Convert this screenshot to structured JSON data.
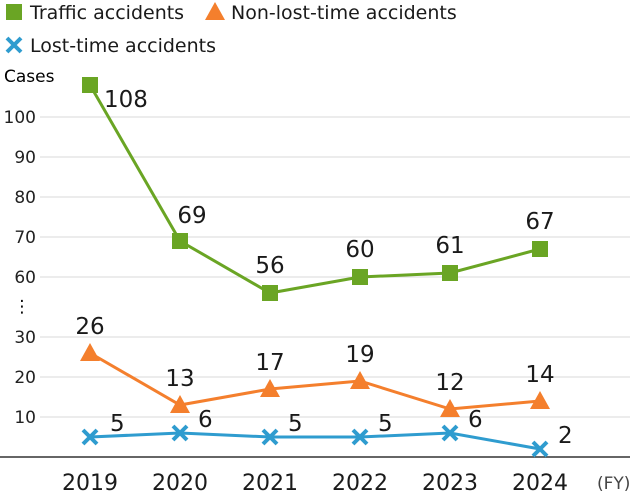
{
  "chart_data": {
    "type": "line",
    "categories": [
      "2019",
      "2020",
      "2021",
      "2022",
      "2023",
      "2024"
    ],
    "x_unit": "(FY)",
    "y_unit": "Cases",
    "broken_axis": true,
    "axis_break_symbol": "⋮",
    "y_ticks_lower": [
      "10",
      "20",
      "30"
    ],
    "y_ticks_upper": [
      "60",
      "70",
      "80",
      "90",
      "100"
    ],
    "grid": true,
    "legend_position": "top-left",
    "series": [
      {
        "name": "Traffic accidents",
        "marker": "square",
        "color": "#6aa524",
        "values": [
          108,
          69,
          56,
          60,
          61,
          67
        ]
      },
      {
        "name": "Non-lost-time accidents",
        "marker": "triangle",
        "color": "#f47f2d",
        "values": [
          26,
          13,
          17,
          19,
          12,
          14
        ]
      },
      {
        "name": "Lost-time accidents",
        "marker": "cross",
        "color": "#2f9ccf",
        "values": [
          5,
          6,
          5,
          5,
          6,
          2
        ]
      }
    ]
  }
}
